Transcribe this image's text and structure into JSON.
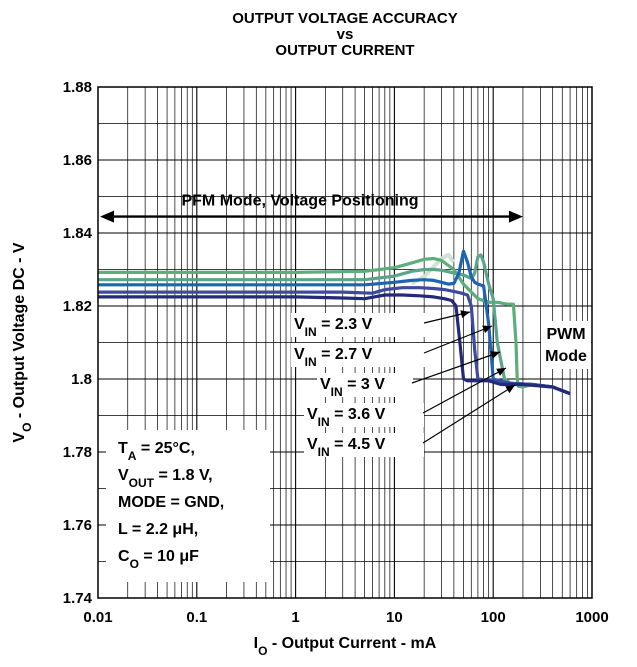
{
  "chart_data": {
    "type": "line",
    "title": [
      "OUTPUT VOLTAGE ACCURACY",
      "vs",
      "OUTPUT CURRENT"
    ],
    "xlabel": {
      "main": "I",
      "sub": "O",
      "rest": " - Output Current - mA"
    },
    "ylabel": {
      "main": "V",
      "sub": "O",
      "rest": " - Output Voltage DC - V"
    },
    "xscale": "log",
    "xlim": [
      0.01,
      1000
    ],
    "ylim": [
      1.74,
      1.88
    ],
    "xticks": [
      "0.01",
      "0.1",
      "1",
      "10",
      "100",
      "1000"
    ],
    "yticks": [
      "1.74",
      "1.76",
      "1.78",
      "1.8",
      "1.82",
      "1.84",
      "1.86",
      "1.88"
    ],
    "grid": true,
    "mode_arrow": {
      "label": "PFM Mode, Voltage Positioning",
      "x_from": 0.01,
      "x_to": 200,
      "y": 1.8445
    },
    "pwm_label": [
      "PWM",
      "Mode"
    ],
    "conditions": [
      {
        "main": "T",
        "sub": "A",
        "rest": " = 25°C,"
      },
      {
        "main": "V",
        "sub": "OUT",
        "rest": " = 1.8 V,"
      },
      {
        "main": "MODE = GND,",
        "sub": "",
        "rest": ""
      },
      {
        "main": "L = 2.2 ",
        "sub": "",
        "rest": "μH,"
      },
      {
        "main": "C",
        "sub": "O",
        "rest": " = 10 μF"
      }
    ],
    "series": [
      {
        "name": "V_IN = 2.3 V",
        "label_main": "V",
        "label_sub": "IN",
        "label_rest": " = 2.3 V",
        "color": "#24297a",
        "x": [
          0.01,
          0.1,
          1,
          3,
          5,
          8,
          12,
          18,
          25,
          32,
          38,
          42,
          46,
          50,
          55,
          60,
          70,
          90,
          120,
          200,
          400,
          600
        ],
        "y": [
          1.8225,
          1.8225,
          1.8225,
          1.8222,
          1.822,
          1.823,
          1.823,
          1.8228,
          1.8225,
          1.822,
          1.8215,
          1.82,
          1.81,
          1.8,
          1.7995,
          1.7995,
          1.7995,
          1.7995,
          1.7985,
          1.7985,
          1.7978,
          1.796
        ]
      },
      {
        "name": "V_IN = 2.7 V",
        "label_main": "V",
        "label_sub": "IN",
        "label_rest": " = 2.7 V",
        "color": "#3d4aa0",
        "x": [
          0.01,
          0.1,
          1,
          3,
          6,
          8,
          12,
          18,
          25,
          32,
          40,
          48,
          55,
          60,
          65,
          70,
          80,
          100,
          150,
          250,
          400,
          600
        ],
        "y": [
          1.8238,
          1.8238,
          1.8238,
          1.8238,
          1.8235,
          1.8245,
          1.825,
          1.825,
          1.8248,
          1.8245,
          1.824,
          1.8235,
          1.823,
          1.82,
          1.808,
          1.8,
          1.7998,
          1.7995,
          1.7988,
          1.7985,
          1.7978,
          1.796
        ]
      },
      {
        "name": "V_IN = 3 V",
        "label_main": "V",
        "label_sub": "IN",
        "label_rest": " = 3 V",
        "color": "#1e64b4",
        "x": [
          0.01,
          0.1,
          1,
          5,
          10,
          15,
          20,
          25,
          30,
          35,
          40,
          45,
          50,
          55,
          60,
          65,
          70,
          80,
          90,
          100,
          150,
          250,
          400,
          600
        ],
        "y": [
          1.8258,
          1.8258,
          1.8258,
          1.8258,
          1.8265,
          1.827,
          1.8272,
          1.827,
          1.8265,
          1.826,
          1.8262,
          1.829,
          1.835,
          1.832,
          1.828,
          1.8265,
          1.826,
          1.8255,
          1.815,
          1.8,
          1.7988,
          1.7985,
          1.7978,
          1.796
        ]
      },
      {
        "name": "V_IN = 3.6 V",
        "label_main": "V",
        "label_sub": "IN",
        "label_rest": " = 3.6 V",
        "color": "#5ba489",
        "x": [
          0.01,
          0.1,
          1,
          5,
          10,
          15,
          20,
          25,
          30,
          40,
          50,
          55,
          60,
          65,
          70,
          75,
          80,
          90,
          100,
          110,
          130,
          150,
          250,
          400,
          600
        ],
        "y": [
          1.8272,
          1.8272,
          1.8272,
          1.8272,
          1.8282,
          1.8295,
          1.83,
          1.83,
          1.8298,
          1.829,
          1.8285,
          1.828,
          1.8275,
          1.829,
          1.8335,
          1.834,
          1.832,
          1.826,
          1.822,
          1.81,
          1.8,
          1.7988,
          1.7985,
          1.7978,
          1.796
        ]
      },
      {
        "name": "V_IN = 4.5 V",
        "label_main": "V",
        "label_sub": "IN",
        "label_rest": " = 4.5 V",
        "color": "#5dae7a",
        "x": [
          0.01,
          0.1,
          1,
          5,
          10,
          15,
          20,
          25,
          30,
          40,
          50,
          70,
          90,
          110,
          140,
          160,
          170,
          175,
          180,
          200,
          250,
          400,
          600
        ],
        "y": [
          1.8292,
          1.8292,
          1.8292,
          1.8295,
          1.8305,
          1.8318,
          1.8328,
          1.833,
          1.8325,
          1.83,
          1.826,
          1.822,
          1.821,
          1.821,
          1.8205,
          1.8205,
          1.81,
          1.8,
          1.798,
          1.7978,
          1.7985,
          1.7978,
          1.796
        ]
      }
    ],
    "ghost_series": {
      "color": "#cfe3d3",
      "x": [
        15,
        20,
        25,
        30,
        35,
        40
      ],
      "y": [
        1.8262,
        1.828,
        1.8308,
        1.833,
        1.834,
        1.832
      ]
    }
  }
}
